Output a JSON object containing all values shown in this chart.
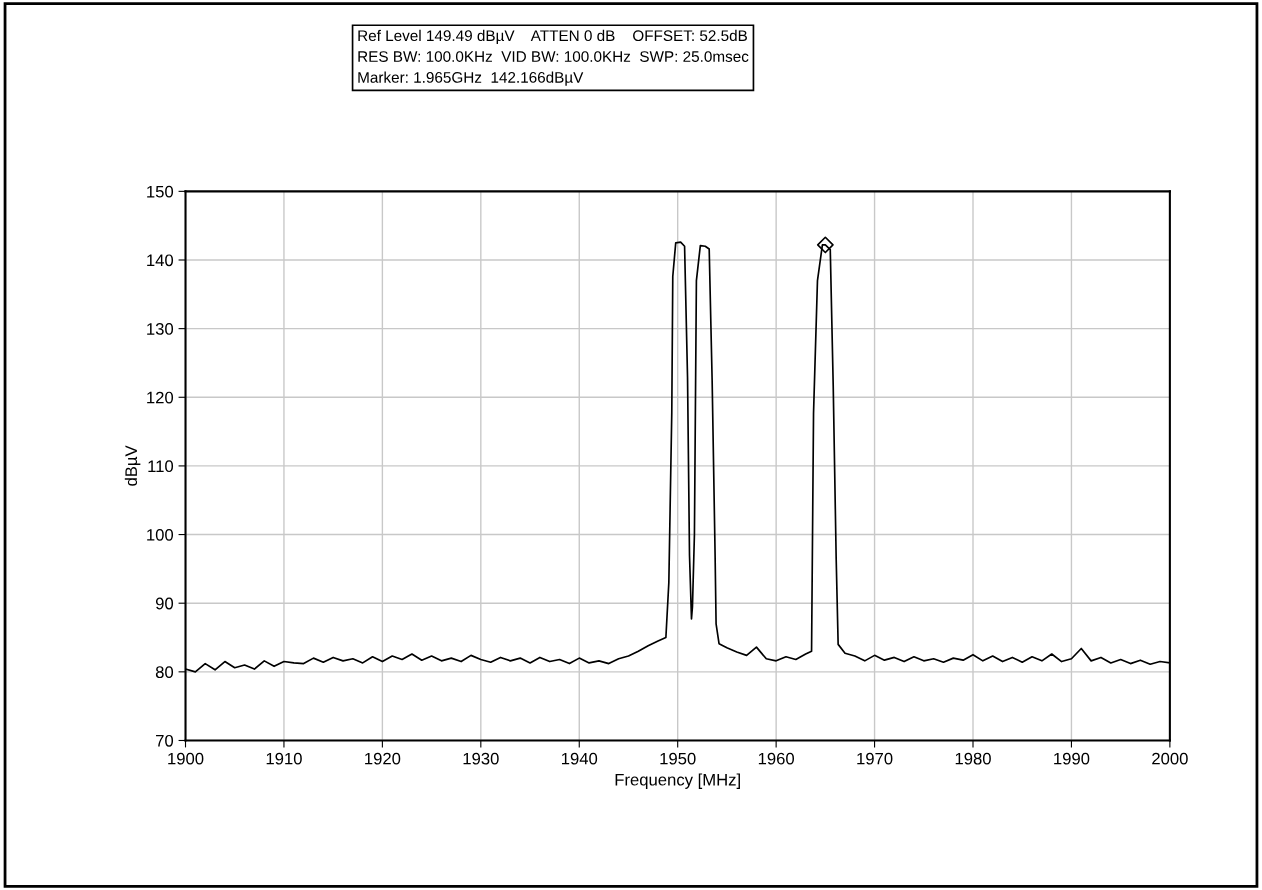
{
  "chart_data": {
    "type": "line",
    "xlabel": "Frequency [MHz]",
    "ylabel": "dBµV",
    "annotations": [
      "Ref Level 149.49 dBµV    ATTEN 0 dB    OFFSET: 52.5dB\nRES BW: 100.0KHz  VID BW: 100.0KHz  SWP: 25.0msec\nMarker: 1.965GHz  142.166dBµV"
    ],
    "xlim": [
      1900,
      2000
    ],
    "ylim": [
      70,
      150
    ],
    "xticks": [
      1900,
      1910,
      1920,
      1930,
      1940,
      1950,
      1960,
      1970,
      1980,
      1990,
      2000
    ],
    "yticks": [
      70,
      80,
      90,
      100,
      110,
      120,
      130,
      140,
      150
    ],
    "grid": true,
    "line_style": "solid",
    "series": [
      {
        "color": "#000000",
        "marker": "none",
        "x": [
          1900,
          1901,
          1902,
          1903,
          1904,
          1905,
          1906,
          1907,
          1908,
          1909,
          1910,
          1911,
          1912,
          1913,
          1914,
          1915,
          1916,
          1917,
          1918,
          1919,
          1920,
          1921,
          1922,
          1923,
          1924,
          1925,
          1926,
          1927,
          1928,
          1929,
          1930,
          1931,
          1932,
          1933,
          1934,
          1935,
          1936,
          1937,
          1938,
          1939,
          1940,
          1941,
          1942,
          1943,
          1944,
          1945,
          1946,
          1947,
          1948,
          1948.8,
          1949.1,
          1949.4,
          1949.5,
          1949.8,
          1950.3,
          1950.7,
          1951.0,
          1951.2,
          1951.4,
          1951.5,
          1951.7,
          1951.9,
          1952.3,
          1952.8,
          1953.2,
          1953.5,
          1953.8,
          1953.9,
          1954.2,
          1955,
          1956,
          1957,
          1958,
          1959,
          1960,
          1961,
          1962,
          1963,
          1963.6,
          1963.8,
          1964.2,
          1964.7,
          1965.0,
          1965.5,
          1965.8,
          1966.1,
          1966.3,
          1967,
          1968,
          1969,
          1970,
          1971,
          1972,
          1973,
          1974,
          1975,
          1976,
          1977,
          1978,
          1979,
          1980,
          1981,
          1982,
          1983,
          1984,
          1985,
          1986,
          1987,
          1988,
          1989,
          1990,
          1991,
          1992,
          1993,
          1994,
          1995,
          1996,
          1997,
          1998,
          1999,
          2000
        ],
        "values": [
          80.4,
          80.0,
          81.2,
          80.3,
          81.5,
          80.6,
          81.0,
          80.4,
          81.6,
          80.8,
          81.5,
          81.3,
          81.2,
          82.0,
          81.4,
          82.1,
          81.6,
          81.9,
          81.3,
          82.2,
          81.5,
          82.3,
          81.8,
          82.6,
          81.7,
          82.3,
          81.6,
          82.0,
          81.5,
          82.4,
          81.8,
          81.4,
          82.1,
          81.6,
          82.0,
          81.3,
          82.1,
          81.5,
          81.8,
          81.2,
          82.0,
          81.3,
          81.6,
          81.2,
          81.9,
          82.3,
          83.0,
          83.8,
          84.5,
          85.0,
          93.0,
          117.8,
          137.6,
          142.5,
          142.6,
          142.0,
          122.9,
          97.0,
          87.7,
          89.5,
          100.0,
          137.0,
          142.1,
          142.0,
          141.6,
          122.4,
          97.0,
          87.0,
          84.1,
          83.5,
          82.9,
          82.4,
          83.6,
          81.9,
          81.6,
          82.2,
          81.8,
          82.6,
          83.0,
          117.7,
          137.0,
          142.2,
          142.2,
          141.5,
          121.6,
          96.5,
          84.0,
          82.7,
          82.3,
          81.6,
          82.4,
          81.7,
          82.1,
          81.5,
          82.2,
          81.6,
          81.9,
          81.4,
          82.0,
          81.7,
          82.5,
          81.6,
          82.3,
          81.5,
          82.1,
          81.4,
          82.2,
          81.6,
          82.6,
          81.5,
          81.9,
          83.4,
          81.6,
          82.1,
          81.3,
          81.8,
          81.2,
          81.7,
          81.1,
          81.5,
          81.3
        ]
      },
      {
        "type": "scatter",
        "color": "#000000",
        "marker": "diamond",
        "x": [
          1965.0
        ],
        "values": [
          142.2
        ]
      }
    ]
  }
}
